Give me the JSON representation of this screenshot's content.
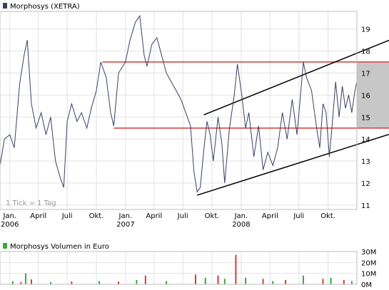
{
  "chart_data": [
    {
      "type": "line",
      "legend": "Morphosys (XETRA)",
      "note": "1 Tick = 1 Tag",
      "colors": {
        "price": "#3a3f66",
        "resistance": "#d43a3a",
        "channel": "#000000",
        "shade": "#c7c7c7"
      },
      "ylim": [
        10.8,
        19.8
      ],
      "yticks": [
        11,
        12,
        13,
        14,
        15,
        16,
        17,
        18,
        19
      ],
      "xrange": [
        "2005-12-01",
        "2008-12-31"
      ],
      "xticks": [
        {
          "date": "2006-01-01",
          "label": "Jan.",
          "year": "2006"
        },
        {
          "date": "2006-04-01",
          "label": "April",
          "year": ""
        },
        {
          "date": "2006-07-01",
          "label": "Juli",
          "year": ""
        },
        {
          "date": "2006-10-01",
          "label": "Okt.",
          "year": ""
        },
        {
          "date": "2007-01-01",
          "label": "Jan.",
          "year": "2007"
        },
        {
          "date": "2007-04-01",
          "label": "April",
          "year": ""
        },
        {
          "date": "2007-07-01",
          "label": "Juli",
          "year": ""
        },
        {
          "date": "2007-10-01",
          "label": "Okt.",
          "year": ""
        },
        {
          "date": "2008-01-01",
          "label": "Jan.",
          "year": "2008"
        },
        {
          "date": "2008-04-01",
          "label": "April",
          "year": ""
        },
        {
          "date": "2008-07-01",
          "label": "Juli",
          "year": ""
        },
        {
          "date": "2008-10-01",
          "label": "Okt.",
          "year": ""
        }
      ],
      "series": [
        {
          "points": [
            [
              "2005-12-01",
              12.8
            ],
            [
              "2005-12-15",
              14.0
            ],
            [
              "2006-01-01",
              14.2
            ],
            [
              "2006-01-15",
              13.6
            ],
            [
              "2006-02-01",
              16.5
            ],
            [
              "2006-02-15",
              17.8
            ],
            [
              "2006-02-25",
              18.5
            ],
            [
              "2006-03-10",
              15.6
            ],
            [
              "2006-03-25",
              14.5
            ],
            [
              "2006-04-10",
              15.2
            ],
            [
              "2006-04-25",
              14.2
            ],
            [
              "2006-05-10",
              15.0
            ],
            [
              "2006-05-25",
              13.0
            ],
            [
              "2006-06-10",
              12.2
            ],
            [
              "2006-06-20",
              11.8
            ],
            [
              "2006-07-01",
              14.8
            ],
            [
              "2006-07-15",
              15.6
            ],
            [
              "2006-08-01",
              14.8
            ],
            [
              "2006-08-15",
              15.2
            ],
            [
              "2006-09-01",
              14.5
            ],
            [
              "2006-09-15",
              15.4
            ],
            [
              "2006-10-01",
              16.2
            ],
            [
              "2006-10-15",
              17.5
            ],
            [
              "2006-11-01",
              16.8
            ],
            [
              "2006-11-15",
              15.2
            ],
            [
              "2006-11-25",
              14.6
            ],
            [
              "2006-12-10",
              17.0
            ],
            [
              "2007-01-01",
              17.5
            ],
            [
              "2007-01-15",
              18.5
            ],
            [
              "2007-02-01",
              19.3
            ],
            [
              "2007-02-15",
              19.6
            ],
            [
              "2007-03-01",
              17.8
            ],
            [
              "2007-03-10",
              17.3
            ],
            [
              "2007-03-25",
              18.3
            ],
            [
              "2007-04-10",
              18.6
            ],
            [
              "2007-04-25",
              17.8
            ],
            [
              "2007-05-10",
              17.0
            ],
            [
              "2007-05-25",
              16.6
            ],
            [
              "2007-06-10",
              16.2
            ],
            [
              "2007-06-25",
              15.8
            ],
            [
              "2007-07-10",
              15.2
            ],
            [
              "2007-07-25",
              14.6
            ],
            [
              "2007-08-05",
              12.5
            ],
            [
              "2007-08-15",
              11.6
            ],
            [
              "2007-08-25",
              11.8
            ],
            [
              "2007-09-05",
              13.5
            ],
            [
              "2007-09-15",
              14.8
            ],
            [
              "2007-09-25",
              14.2
            ],
            [
              "2007-10-05",
              13.0
            ],
            [
              "2007-10-20",
              15.0
            ],
            [
              "2007-11-01",
              13.8
            ],
            [
              "2007-11-10",
              12.0
            ],
            [
              "2007-11-25",
              14.5
            ],
            [
              "2007-12-10",
              16.0
            ],
            [
              "2007-12-20",
              17.4
            ],
            [
              "2008-01-01",
              16.2
            ],
            [
              "2008-01-15",
              14.5
            ],
            [
              "2008-01-25",
              15.2
            ],
            [
              "2008-02-10",
              13.2
            ],
            [
              "2008-02-25",
              14.6
            ],
            [
              "2008-03-10",
              12.6
            ],
            [
              "2008-03-25",
              13.4
            ],
            [
              "2008-04-10",
              12.8
            ],
            [
              "2008-04-25",
              13.6
            ],
            [
              "2008-05-10",
              15.2
            ],
            [
              "2008-05-25",
              14.0
            ],
            [
              "2008-06-10",
              15.8
            ],
            [
              "2008-06-25",
              14.2
            ],
            [
              "2008-07-05",
              15.8
            ],
            [
              "2008-07-15",
              17.5
            ],
            [
              "2008-07-25",
              16.8
            ],
            [
              "2008-08-10",
              16.2
            ],
            [
              "2008-08-25",
              14.6
            ],
            [
              "2008-09-05",
              13.6
            ],
            [
              "2008-09-15",
              15.6
            ],
            [
              "2008-09-25",
              15.2
            ],
            [
              "2008-10-05",
              13.2
            ],
            [
              "2008-10-15",
              14.8
            ],
            [
              "2008-10-25",
              16.6
            ],
            [
              "2008-11-05",
              15.0
            ],
            [
              "2008-11-15",
              16.4
            ],
            [
              "2008-11-25",
              15.4
            ],
            [
              "2008-12-05",
              16.0
            ],
            [
              "2008-12-15",
              15.2
            ],
            [
              "2008-12-25",
              16.2
            ],
            [
              "2008-12-31",
              16.6
            ]
          ]
        }
      ],
      "resistance_lines": [
        {
          "from": "2006-10-20",
          "to": "2008-12-31",
          "value": 17.5
        },
        {
          "from": "2006-11-25",
          "to": "2008-12-31",
          "value": 14.5
        }
      ],
      "channel_lines": [
        {
          "from": [
            "2007-08-15",
            11.45
          ],
          "to": [
            "2008-12-31",
            13.75
          ]
        },
        {
          "from": [
            "2007-09-05",
            15.1
          ],
          "to": [
            "2008-12-31",
            17.9
          ]
        }
      ],
      "shade_band": {
        "from": "2008-12-31",
        "low": 14.5,
        "high": 17.5
      }
    },
    {
      "type": "bar",
      "legend": "Morphosys Volumen in Euro",
      "colors": {
        "up": "#3aa83a",
        "down": "#d43a3a"
      },
      "ylim": [
        0,
        30000000
      ],
      "yticks": [
        {
          "value": 0,
          "label": "0M"
        },
        {
          "value": 10000000,
          "label": "10M"
        },
        {
          "value": 20000000,
          "label": "20M"
        },
        {
          "value": 30000000,
          "label": "30M"
        }
      ],
      "series": [
        {
          "points": [
            [
              "2006-01-10",
              3000000
            ],
            [
              "2006-02-05",
              2000000
            ],
            [
              "2006-02-20",
              10000000
            ],
            [
              "2006-03-10",
              4500000
            ],
            [
              "2006-05-10",
              2000000
            ],
            [
              "2006-07-15",
              2500000
            ],
            [
              "2006-10-10",
              3000000
            ],
            [
              "2006-12-10",
              2500000
            ],
            [
              "2007-02-05",
              4000000
            ],
            [
              "2007-03-05",
              8000000
            ],
            [
              "2007-05-10",
              3000000
            ],
            [
              "2007-08-10",
              9000000
            ],
            [
              "2007-09-10",
              6000000
            ],
            [
              "2007-10-20",
              8000000
            ],
            [
              "2007-11-10",
              5000000
            ],
            [
              "2007-12-15",
              27000000
            ],
            [
              "2008-01-15",
              6000000
            ],
            [
              "2008-03-10",
              5000000
            ],
            [
              "2008-04-10",
              3000000
            ],
            [
              "2008-05-20",
              4000000
            ],
            [
              "2008-07-15",
              8000000
            ],
            [
              "2008-09-15",
              5000000
            ],
            [
              "2008-10-10",
              6000000
            ],
            [
              "2008-11-20",
              4000000
            ],
            [
              "2008-12-15",
              3000000
            ]
          ]
        }
      ]
    }
  ]
}
